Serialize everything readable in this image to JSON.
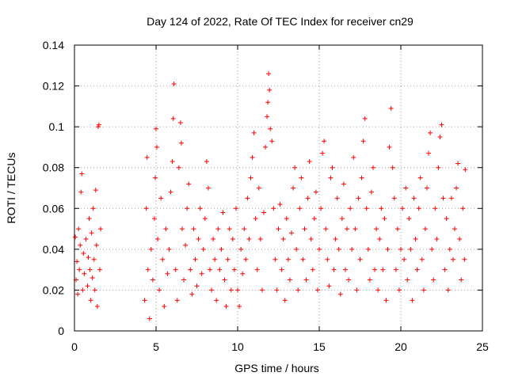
{
  "chart_data": {
    "type": "scatter",
    "title": "Day 124 of 2022, Rate Of TEC Index for receiver cn29",
    "xlabel": "GPS time / hours",
    "ylabel": "ROTI / TECUs",
    "xlim": [
      0,
      25
    ],
    "ylim": [
      0,
      0.14
    ],
    "xticks": [
      "0",
      "5",
      "10",
      "15",
      "20",
      "25"
    ],
    "yticks": [
      "0",
      "0.02",
      "0.04",
      "0.06",
      "0.08",
      "0.1",
      "0.12",
      "0.14"
    ],
    "grid": true,
    "marker": "+",
    "color": "#ff0000",
    "series": [
      {
        "name": "",
        "points": [
          [
            0.05,
            0.046
          ],
          [
            0.1,
            0.025
          ],
          [
            0.15,
            0.034
          ],
          [
            0.2,
            0.018
          ],
          [
            0.25,
            0.05
          ],
          [
            0.3,
            0.03
          ],
          [
            0.35,
            0.042
          ],
          [
            0.4,
            0.068
          ],
          [
            0.45,
            0.077
          ],
          [
            0.5,
            0.02
          ],
          [
            0.55,
            0.038
          ],
          [
            0.6,
            0.028
          ],
          [
            0.7,
            0.045
          ],
          [
            0.8,
            0.022
          ],
          [
            0.85,
            0.036
          ],
          [
            0.9,
            0.055
          ],
          [
            0.95,
            0.03
          ],
          [
            1.0,
            0.015
          ],
          [
            1.05,
            0.048
          ],
          [
            1.1,
            0.026
          ],
          [
            1.15,
            0.06
          ],
          [
            1.2,
            0.035
          ],
          [
            1.25,
            0.02
          ],
          [
            1.3,
            0.069
          ],
          [
            1.35,
            0.042
          ],
          [
            1.4,
            0.012
          ],
          [
            1.45,
            0.1
          ],
          [
            1.5,
            0.101
          ],
          [
            1.55,
            0.03
          ],
          [
            1.6,
            0.05
          ],
          [
            4.3,
            0.015
          ],
          [
            4.4,
            0.06
          ],
          [
            4.45,
            0.085
          ],
          [
            4.5,
            0.03
          ],
          [
            4.6,
            0.006
          ],
          [
            4.7,
            0.04
          ],
          [
            4.8,
            0.025
          ],
          [
            4.9,
            0.055
          ],
          [
            4.95,
            0.075
          ],
          [
            5.0,
            0.099
          ],
          [
            5.05,
            0.09
          ],
          [
            5.1,
            0.045
          ],
          [
            5.2,
            0.02
          ],
          [
            5.3,
            0.065
          ],
          [
            5.4,
            0.035
          ],
          [
            5.5,
            0.012
          ],
          [
            5.6,
            0.05
          ],
          [
            5.7,
            0.028
          ],
          [
            5.8,
            0.04
          ],
          [
            5.9,
            0.068
          ],
          [
            6.0,
            0.083
          ],
          [
            6.05,
            0.104
          ],
          [
            6.1,
            0.121
          ],
          [
            6.2,
            0.03
          ],
          [
            6.3,
            0.015
          ],
          [
            6.4,
            0.08
          ],
          [
            6.5,
            0.102
          ],
          [
            6.55,
            0.092
          ],
          [
            6.6,
            0.05
          ],
          [
            6.7,
            0.025
          ],
          [
            6.8,
            0.042
          ],
          [
            6.9,
            0.06
          ],
          [
            7.0,
            0.072
          ],
          [
            7.1,
            0.03
          ],
          [
            7.2,
            0.018
          ],
          [
            7.3,
            0.05
          ],
          [
            7.4,
            0.035
          ],
          [
            7.5,
            0.022
          ],
          [
            7.6,
            0.045
          ],
          [
            7.7,
            0.06
          ],
          [
            7.8,
            0.028
          ],
          [
            7.9,
            0.04
          ],
          [
            8.0,
            0.055
          ],
          [
            8.1,
            0.083
          ],
          [
            8.2,
            0.07
          ],
          [
            8.3,
            0.03
          ],
          [
            8.4,
            0.02
          ],
          [
            8.5,
            0.045
          ],
          [
            8.6,
            0.035
          ],
          [
            8.7,
            0.015
          ],
          [
            8.8,
            0.05
          ],
          [
            8.9,
            0.03
          ],
          [
            9.0,
            0.04
          ],
          [
            9.1,
            0.058
          ],
          [
            9.2,
            0.025
          ],
          [
            9.3,
            0.012
          ],
          [
            9.4,
            0.035
          ],
          [
            9.5,
            0.05
          ],
          [
            9.6,
            0.02
          ],
          [
            9.7,
            0.045
          ],
          [
            9.8,
            0.03
          ],
          [
            9.9,
            0.06
          ],
          [
            10.0,
            0.02
          ],
          [
            10.1,
            0.012
          ],
          [
            10.2,
            0.04
          ],
          [
            10.3,
            0.028
          ],
          [
            10.4,
            0.05
          ],
          [
            10.5,
            0.035
          ],
          [
            10.6,
            0.065
          ],
          [
            10.7,
            0.045
          ],
          [
            10.8,
            0.075
          ],
          [
            10.9,
            0.085
          ],
          [
            11.0,
            0.097
          ],
          [
            11.1,
            0.055
          ],
          [
            11.2,
            0.03
          ],
          [
            11.3,
            0.07
          ],
          [
            11.4,
            0.045
          ],
          [
            11.5,
            0.02
          ],
          [
            11.6,
            0.058
          ],
          [
            11.7,
            0.09
          ],
          [
            11.8,
            0.105
          ],
          [
            11.85,
            0.112
          ],
          [
            11.9,
            0.126
          ],
          [
            11.95,
            0.118
          ],
          [
            12.0,
            0.099
          ],
          [
            12.1,
            0.093
          ],
          [
            12.2,
            0.06
          ],
          [
            12.3,
            0.035
          ],
          [
            12.4,
            0.02
          ],
          [
            12.5,
            0.05
          ],
          [
            12.6,
            0.062
          ],
          [
            12.7,
            0.03
          ],
          [
            12.8,
            0.045
          ],
          [
            12.9,
            0.015
          ],
          [
            13.0,
            0.055
          ],
          [
            13.1,
            0.035
          ],
          [
            13.2,
            0.025
          ],
          [
            13.3,
            0.048
          ],
          [
            13.4,
            0.07
          ],
          [
            13.5,
            0.08
          ],
          [
            13.6,
            0.04
          ],
          [
            13.7,
            0.02
          ],
          [
            13.8,
            0.06
          ],
          [
            13.9,
            0.075
          ],
          [
            14.0,
            0.035
          ],
          [
            14.1,
            0.05
          ],
          [
            14.2,
            0.025
          ],
          [
            14.3,
            0.065
          ],
          [
            14.4,
            0.083
          ],
          [
            14.5,
            0.045
          ],
          [
            14.6,
            0.03
          ],
          [
            14.7,
            0.055
          ],
          [
            14.8,
            0.068
          ],
          [
            14.9,
            0.02
          ],
          [
            15.0,
            0.04
          ],
          [
            15.1,
            0.06
          ],
          [
            15.2,
            0.087
          ],
          [
            15.3,
            0.093
          ],
          [
            15.4,
            0.05
          ],
          [
            15.5,
            0.035
          ],
          [
            15.6,
            0.022
          ],
          [
            15.7,
            0.075
          ],
          [
            15.8,
            0.08
          ],
          [
            15.9,
            0.03
          ],
          [
            16.0,
            0.045
          ],
          [
            16.1,
            0.065
          ],
          [
            16.2,
            0.04
          ],
          [
            16.3,
            0.018
          ],
          [
            16.4,
            0.055
          ],
          [
            16.5,
            0.072
          ],
          [
            16.6,
            0.03
          ],
          [
            16.7,
            0.05
          ],
          [
            16.8,
            0.025
          ],
          [
            16.9,
            0.06
          ],
          [
            17.0,
            0.04
          ],
          [
            17.1,
            0.085
          ],
          [
            17.2,
            0.05
          ],
          [
            17.3,
            0.02
          ],
          [
            17.4,
            0.065
          ],
          [
            17.5,
            0.035
          ],
          [
            17.6,
            0.075
          ],
          [
            17.7,
            0.093
          ],
          [
            17.8,
            0.104
          ],
          [
            17.9,
            0.06
          ],
          [
            18.0,
            0.04
          ],
          [
            18.1,
            0.025
          ],
          [
            18.2,
            0.068
          ],
          [
            18.3,
            0.08
          ],
          [
            18.4,
            0.03
          ],
          [
            18.5,
            0.05
          ],
          [
            18.6,
            0.02
          ],
          [
            18.7,
            0.045
          ],
          [
            18.8,
            0.06
          ],
          [
            18.9,
            0.03
          ],
          [
            19.0,
            0.055
          ],
          [
            19.1,
            0.015
          ],
          [
            19.2,
            0.04
          ],
          [
            19.3,
            0.09
          ],
          [
            19.4,
            0.109
          ],
          [
            19.5,
            0.08
          ],
          [
            19.6,
            0.065
          ],
          [
            19.7,
            0.03
          ],
          [
            19.8,
            0.05
          ],
          [
            19.9,
            0.02
          ],
          [
            20.0,
            0.04
          ],
          [
            20.1,
            0.06
          ],
          [
            20.2,
            0.035
          ],
          [
            20.3,
            0.07
          ],
          [
            20.4,
            0.025
          ],
          [
            20.5,
            0.055
          ],
          [
            20.6,
            0.04
          ],
          [
            20.7,
            0.015
          ],
          [
            20.8,
            0.065
          ],
          [
            20.9,
            0.045
          ],
          [
            21.0,
            0.03
          ],
          [
            21.1,
            0.06
          ],
          [
            21.2,
            0.075
          ],
          [
            21.3,
            0.035
          ],
          [
            21.4,
            0.02
          ],
          [
            21.5,
            0.05
          ],
          [
            21.6,
            0.07
          ],
          [
            21.7,
            0.087
          ],
          [
            21.8,
            0.097
          ],
          [
            21.9,
            0.04
          ],
          [
            22.0,
            0.025
          ],
          [
            22.1,
            0.06
          ],
          [
            22.2,
            0.045
          ],
          [
            22.3,
            0.08
          ],
          [
            22.4,
            0.095
          ],
          [
            22.5,
            0.101
          ],
          [
            22.6,
            0.065
          ],
          [
            22.7,
            0.03
          ],
          [
            22.8,
            0.055
          ],
          [
            22.9,
            0.02
          ],
          [
            23.0,
            0.04
          ],
          [
            23.1,
            0.065
          ],
          [
            23.2,
            0.035
          ],
          [
            23.3,
            0.05
          ],
          [
            23.4,
            0.07
          ],
          [
            23.5,
            0.082
          ],
          [
            23.6,
            0.045
          ],
          [
            23.7,
            0.025
          ],
          [
            23.8,
            0.06
          ],
          [
            23.9,
            0.035
          ],
          [
            23.95,
            0.079
          ]
        ]
      }
    ]
  }
}
